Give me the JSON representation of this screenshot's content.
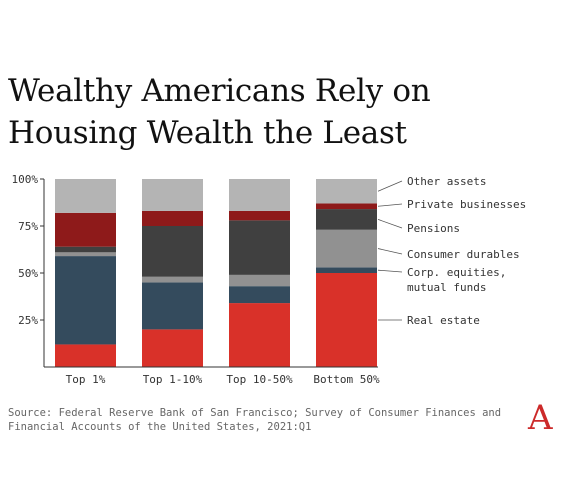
{
  "title": "Wealthy Americans Rely on Housing Wealth the Least",
  "source": "Source: Federal Reserve Bank of San Francisco; Survey of Consumer Finances and Financial Accounts of the United States, 2021:Q1",
  "logo": "A",
  "chart_data": {
    "type": "bar",
    "stacked": true,
    "categories": [
      "Top 1%",
      "Top 1-10%",
      "Top 10-50%",
      "Bottom 50%"
    ],
    "ylim": [
      0,
      100
    ],
    "yticks": [
      25,
      50,
      75,
      100
    ],
    "ytick_labels": [
      "25%",
      "50%",
      "75%",
      "100%"
    ],
    "grid": false,
    "legend_position": "right, inline labels with leader lines",
    "series": [
      {
        "name": "Real estate",
        "color": "#d93129",
        "values": [
          12,
          20,
          34,
          50
        ]
      },
      {
        "name": "Corp. equities, mutual funds",
        "color": "#344b5d",
        "values": [
          47,
          25,
          9,
          3
        ]
      },
      {
        "name": "Consumer durables",
        "color": "#919191",
        "values": [
          2,
          3,
          6,
          20
        ]
      },
      {
        "name": "Pensions",
        "color": "#404040",
        "values": [
          3,
          27,
          29,
          11
        ]
      },
      {
        "name": "Private businesses",
        "color": "#8e1a1a",
        "values": [
          18,
          8,
          5,
          3
        ]
      },
      {
        "name": "Other assets",
        "color": "#b4b4b4",
        "values": [
          18,
          17,
          17,
          13
        ]
      }
    ],
    "legend_labels": [
      {
        "series": 5,
        "lines": [
          "Other assets"
        ]
      },
      {
        "series": 4,
        "lines": [
          "Private businesses"
        ]
      },
      {
        "series": 3,
        "lines": [
          "Pensions"
        ]
      },
      {
        "series": 2,
        "lines": [
          "Consumer durables"
        ]
      },
      {
        "series": 1,
        "lines": [
          "Corp. equities,",
          "mutual funds"
        ]
      },
      {
        "series": 0,
        "lines": [
          "Real estate"
        ]
      }
    ]
  }
}
